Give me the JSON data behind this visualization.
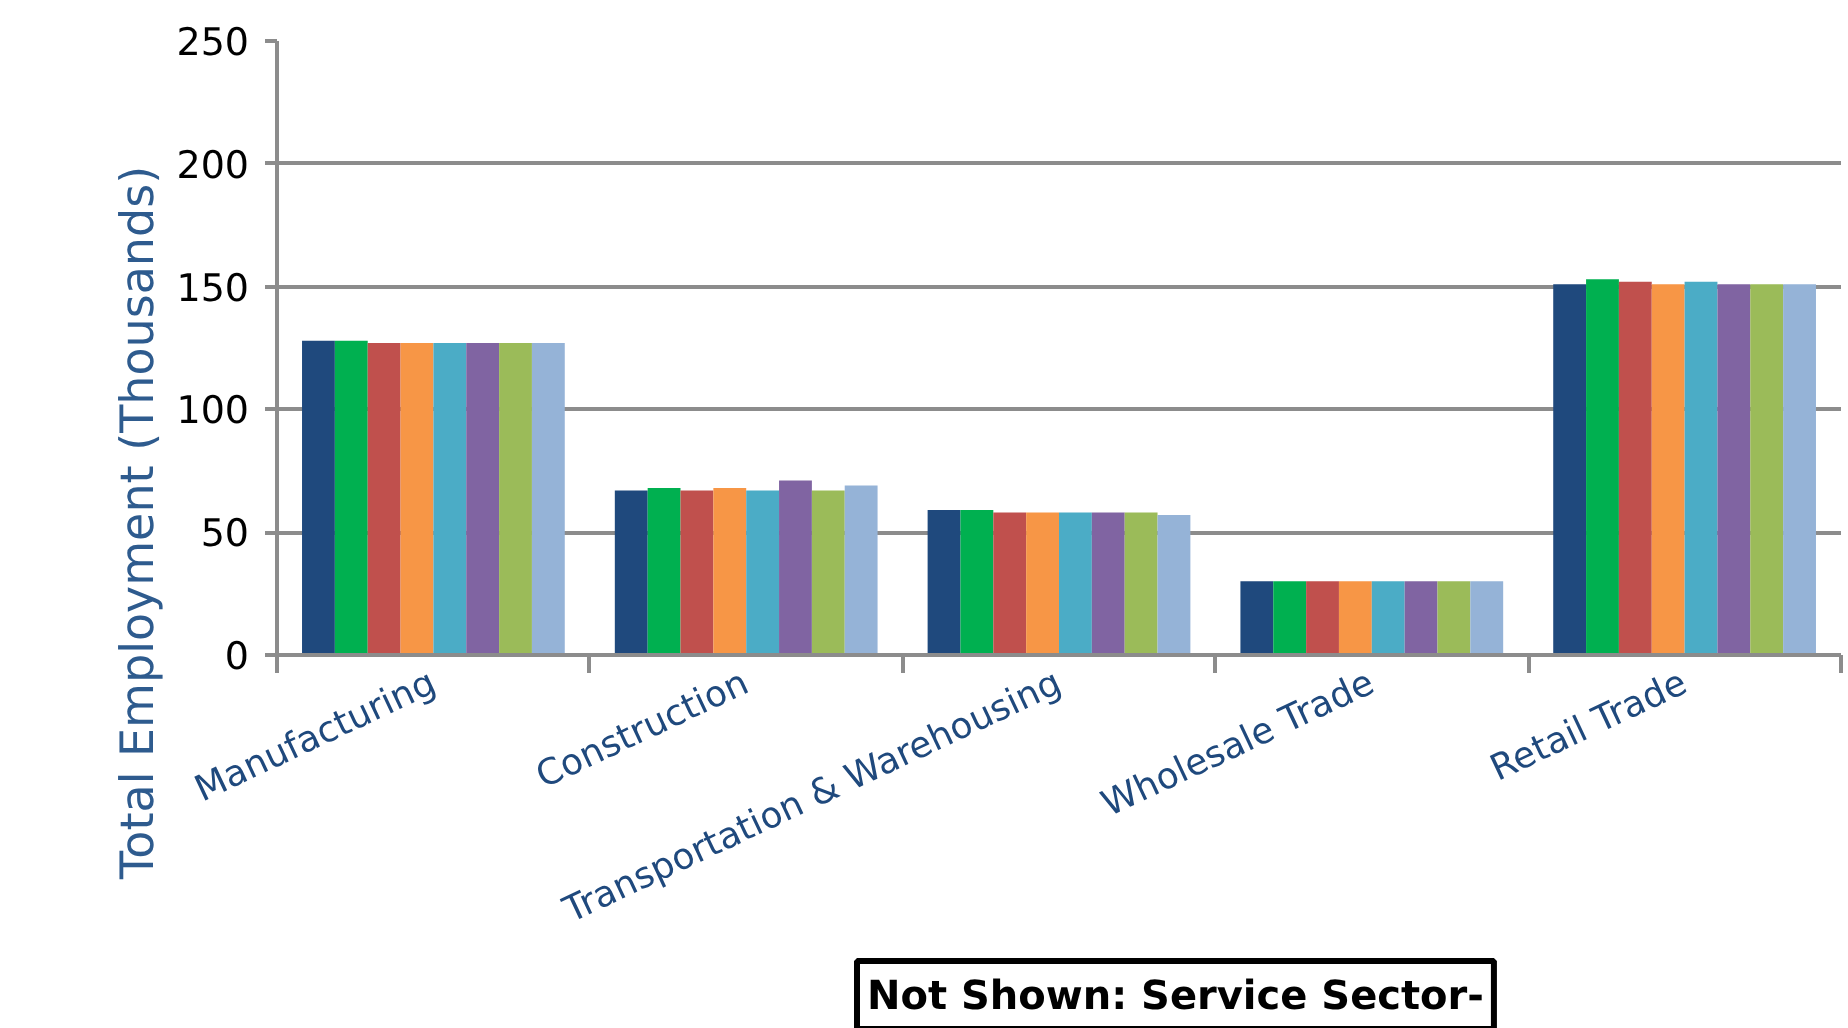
{
  "chart_data": {
    "type": "bar",
    "ylabel": "Total Employment (Thousands)",
    "categories": [
      "Manufacturing",
      "Construction",
      "Transportation & Warehousing",
      "Wholesale Trade",
      "Retail Trade"
    ],
    "series": [
      {
        "color": "#1f497d",
        "values": [
          128,
          67,
          59,
          30,
          151
        ]
      },
      {
        "color": "#00b050",
        "values": [
          128,
          68,
          59,
          30,
          153
        ]
      },
      {
        "color": "#c0504d",
        "values": [
          127,
          67,
          58,
          30,
          152
        ]
      },
      {
        "color": "#f79646",
        "values": [
          127,
          68,
          58,
          30,
          151
        ]
      },
      {
        "color": "#4bacc6",
        "values": [
          127,
          67,
          58,
          30,
          152
        ]
      },
      {
        "color": "#8064a2",
        "values": [
          127,
          71,
          58,
          30,
          151
        ]
      },
      {
        "color": "#9bbb59",
        "values": [
          127,
          67,
          58,
          30,
          151
        ]
      },
      {
        "color": "#95b3d7",
        "values": [
          127,
          69,
          57,
          30,
          151
        ]
      }
    ],
    "ylim": [
      0,
      250
    ],
    "yticks": [
      0,
      50,
      100,
      150,
      200,
      250
    ],
    "grid": "y",
    "annotations": [
      "Not Shown: Service Sector-"
    ]
  }
}
